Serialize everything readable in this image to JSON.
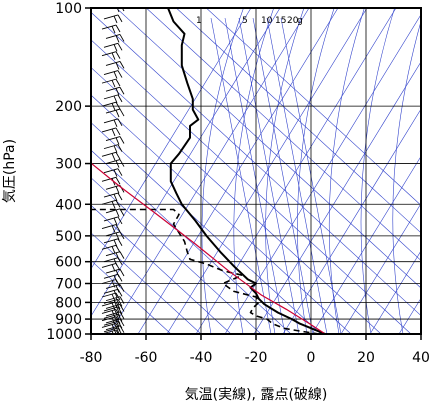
{
  "chart_data": {
    "type": "line",
    "title": "",
    "xlabel": "気温(実線), 露点(破線)",
    "ylabel": "気圧(hPa)",
    "xlim": [
      -80,
      40
    ],
    "ylim": [
      1000,
      100
    ],
    "y_scale": "log",
    "x_ticks": [
      -80,
      -60,
      -40,
      -20,
      0,
      20,
      40
    ],
    "x_tick_labels": [
      "-80",
      "-60",
      "-40",
      "-20",
      "0",
      "20",
      "40"
    ],
    "y_ticks": [
      100,
      200,
      300,
      400,
      500,
      600,
      700,
      800,
      900,
      1000
    ],
    "y_tick_labels": [
      "100",
      "200",
      "300",
      "400",
      "500",
      "600",
      "700",
      "800",
      "900",
      "1000"
    ],
    "mixing_ratio_labels": [
      "1",
      "5",
      "10",
      "15",
      "20",
      "g"
    ],
    "grid": true,
    "colors": {
      "temperature": "#000000",
      "dewpoint": "#000000",
      "parcel": "#cc0033",
      "guide_lines": "#3344cc",
      "grid": "#000000",
      "wind_barbs": "#000000"
    },
    "series": [
      {
        "style": "solid",
        "points": [
          [
            5.2,
            1000
          ],
          [
            0,
            960
          ],
          [
            -4,
            930
          ],
          [
            -7,
            900
          ],
          [
            -12,
            860
          ],
          [
            -17,
            810
          ],
          [
            -19,
            780
          ],
          [
            -20,
            750
          ],
          [
            -22,
            720
          ],
          [
            -20,
            700
          ],
          [
            -23,
            680
          ],
          [
            -28,
            620
          ],
          [
            -33,
            560
          ],
          [
            -38,
            500
          ],
          [
            -42,
            450
          ],
          [
            -47,
            400
          ],
          [
            -49,
            370
          ],
          [
            -51,
            340
          ],
          [
            -51,
            300
          ],
          [
            -48,
            280
          ],
          [
            -44,
            250
          ],
          [
            -44,
            230
          ],
          [
            -41,
            220
          ],
          [
            -43,
            205
          ],
          [
            -43,
            190
          ],
          [
            -45,
            170
          ],
          [
            -47,
            150
          ],
          [
            -47,
            130
          ],
          [
            -46,
            120
          ],
          [
            -50,
            110
          ],
          [
            -52,
            100
          ]
        ]
      },
      {
        "style": "dashed",
        "points": [
          [
            3,
            1000
          ],
          [
            -4,
            980
          ],
          [
            -10,
            960
          ],
          [
            -14,
            930
          ],
          [
            -16,
            900
          ],
          [
            -20,
            880
          ],
          [
            -22,
            860
          ],
          [
            -21,
            830
          ],
          [
            -19,
            800
          ],
          [
            -20,
            770
          ],
          [
            -28,
            740
          ],
          [
            -30,
            720
          ],
          [
            -32,
            700
          ],
          [
            -25,
            660
          ],
          [
            -32,
            640
          ],
          [
            -38,
            610
          ],
          [
            -44,
            590
          ],
          [
            -45,
            560
          ],
          [
            -46,
            520
          ],
          [
            -50,
            460
          ],
          [
            -48,
            430
          ],
          [
            -50,
            415
          ],
          [
            -84,
            415
          ]
        ]
      },
      {
        "style": "solid",
        "points": [
          [
            5.2,
            1000
          ],
          [
            -0.5,
            930
          ],
          [
            -9,
            840
          ],
          [
            -18,
            760
          ],
          [
            -30,
            640
          ],
          [
            -42,
            530
          ],
          [
            -56,
            430
          ],
          [
            -70,
            350
          ],
          [
            -82,
            290
          ]
        ]
      }
    ],
    "wind_barbs": {
      "pressures": [
        1000,
        985,
        970,
        955,
        940,
        925,
        910,
        895,
        880,
        865,
        850,
        835,
        820,
        805,
        790,
        770,
        750,
        725,
        700,
        675,
        650,
        625,
        600,
        575,
        550,
        525,
        500,
        475,
        450,
        425,
        400,
        380,
        360,
        340,
        320,
        300,
        285,
        270,
        255,
        240,
        225,
        210,
        200,
        190,
        180,
        170,
        160,
        150,
        140,
        132,
        124,
        116,
        108,
        100
      ]
    }
  }
}
